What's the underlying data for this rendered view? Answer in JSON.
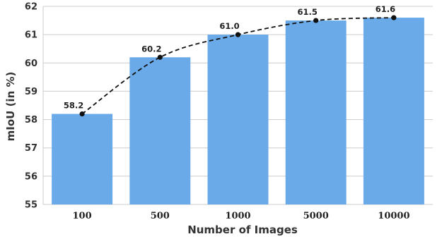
{
  "chart_data": {
    "type": "bar",
    "categories": [
      "100",
      "500",
      "1000",
      "5000",
      "10000"
    ],
    "values": [
      58.2,
      60.2,
      61.0,
      61.5,
      61.6
    ],
    "value_labels": [
      "58.2",
      "60.2",
      "61.0",
      "61.5",
      "61.6"
    ],
    "overlay_line": {
      "style": "dashed",
      "markers": true,
      "color": "#111111"
    },
    "title": "",
    "xlabel": "Number of Images",
    "ylabel": "mIoU (in %)",
    "ylim": [
      55,
      62
    ],
    "yticks": [
      "55",
      "56",
      "57",
      "58",
      "59",
      "60",
      "61",
      "62"
    ],
    "grid": true,
    "legend": "none",
    "colors": {
      "bar": "#6aaae8",
      "grid": "#cccccc",
      "line": "#111111"
    }
  }
}
